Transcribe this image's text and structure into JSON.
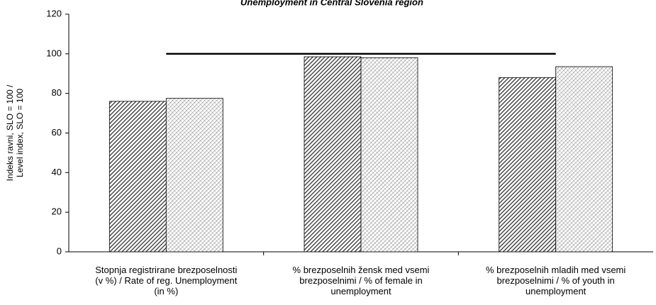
{
  "chart_data": {
    "type": "bar",
    "title": "Unemployment in Central Slovenia region",
    "y_label": "Indeks ravni, SLO = 100 /\nLevel index, SLO = 100",
    "categories": [
      "Stopnja registrirane brezposelnosti\n(v %) / Rate of reg. Unemployment\n(in %)",
      "% brezposelnih žensk med vsemi\nbrezposelnimi / % of female in\nunemployment",
      "% brezposelnih mladih med vsemi\nbrezposelnimi / % of youth in\nunemployment"
    ],
    "series": [
      {
        "color": "#333333",
        "values": [
          76,
          98.5,
          88
        ]
      },
      {
        "color": "#777777",
        "values": [
          77.5,
          98,
          93.5
        ]
      }
    ],
    "reference_line": 100,
    "ylim": [
      0,
      120
    ],
    "yticks": [
      0,
      20,
      40,
      60,
      80,
      100,
      120
    ]
  }
}
